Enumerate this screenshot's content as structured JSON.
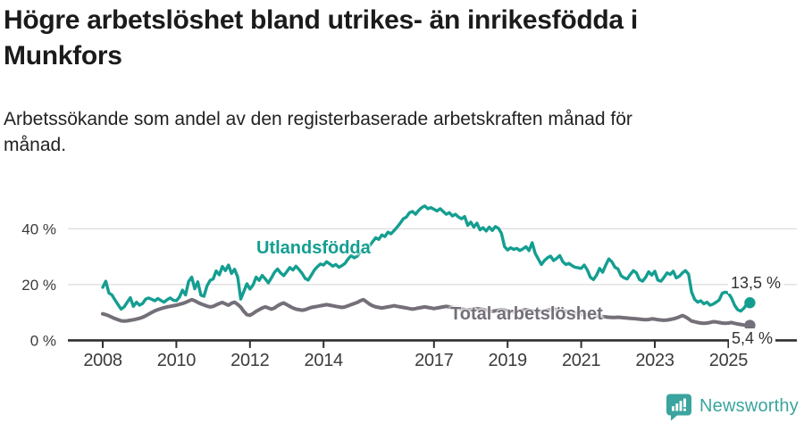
{
  "header": {
    "title_lines": [
      "Högre arbetslöshet bland utrikes- än inrikesfödda i",
      "Munkfors"
    ],
    "subtitle_lines": [
      "Arbetssökande som andel av den registerbaserade arbetskraften månad för",
      "månad."
    ]
  },
  "footer": {
    "brand": "Newsworthy",
    "logo_icon": "bar-chart-speech-bubble-icon"
  },
  "colors": {
    "foreign": "#149e91",
    "total": "#746f78",
    "grid": "#dcdcdc",
    "axis": "#2f2f2f",
    "tick_text": "#3b3b3b",
    "brand": "#3ba49e"
  },
  "chart_data": {
    "type": "line",
    "title": "Högre arbetslöshet bland utrikes- än inrikesfödda i Munkfors",
    "subtitle": "Arbetssökande som andel av den registerbaserade arbetskraften månad för månad.",
    "x_unit": "months",
    "x_start_year": 2008,
    "x_end_year": 2025.58,
    "ylim": [
      0,
      50
    ],
    "grid": "horizontal-only",
    "legend_position": "inline-labels",
    "y_ticks": [
      {
        "value": 0,
        "label": "0 %"
      },
      {
        "value": 20,
        "label": "20 %"
      },
      {
        "value": 40,
        "label": "40 %"
      }
    ],
    "x_ticks": [
      {
        "year": 2008,
        "label": "2008"
      },
      {
        "year": 2010,
        "label": "2010"
      },
      {
        "year": 2012,
        "label": "2012"
      },
      {
        "year": 2014,
        "label": "2014"
      },
      {
        "year": 2017,
        "label": "2017"
      },
      {
        "year": 2019,
        "label": "2019"
      },
      {
        "year": 2021,
        "label": "2021"
      },
      {
        "year": 2023,
        "label": "2023"
      },
      {
        "year": 2025,
        "label": "2025"
      }
    ],
    "series": [
      {
        "name": "Utlandsfödda",
        "color_key": "foreign",
        "end_label": "13,5 %",
        "end_value": 13.5,
        "values": [
          19.0,
          21.2,
          17.0,
          16.3,
          14.5,
          12.8,
          11.2,
          12.0,
          13.7,
          15.3,
          12.2,
          13.7,
          12.6,
          13.2,
          14.8,
          15.2,
          14.7,
          14.2,
          15.0,
          14.3,
          13.7,
          14.6,
          15.2,
          14.4,
          14.2,
          15.5,
          18.0,
          16.3,
          21.1,
          22.7,
          18.5,
          21.0,
          16.2,
          15.8,
          19.5,
          21.5,
          22.0,
          24.9,
          23.5,
          26.5,
          25.0,
          27.0,
          24.0,
          25.5,
          22.7,
          14.8,
          17.5,
          20.3,
          18.4,
          19.8,
          22.7,
          21.5,
          23.3,
          22.0,
          20.6,
          22.4,
          24.4,
          25.6,
          24.2,
          23.2,
          24.6,
          26.1,
          25.2,
          26.6,
          25.4,
          24.0,
          22.2,
          21.6,
          23.4,
          25.2,
          26.4,
          27.4,
          27.0,
          28.2,
          27.4,
          26.6,
          27.2,
          26.2,
          26.8,
          27.6,
          29.2,
          30.4,
          29.6,
          30.2,
          31.6,
          33.0,
          34.4,
          33.8,
          35.4,
          36.8,
          36.2,
          37.8,
          37.2,
          38.8,
          38.2,
          39.4,
          40.6,
          42.0,
          43.6,
          44.2,
          45.8,
          46.2,
          45.2,
          46.6,
          47.6,
          48.2,
          47.2,
          47.6,
          47.0,
          46.4,
          47.2,
          46.2,
          45.2,
          45.8,
          44.6,
          45.2,
          44.2,
          43.6,
          44.4,
          41.2,
          42.4,
          40.6,
          42.0,
          39.6,
          40.4,
          39.2,
          40.6,
          39.4,
          40.8,
          40.2,
          38.4,
          33.6,
          32.4,
          33.2,
          32.6,
          33.0,
          32.2,
          32.8,
          33.6,
          32.2,
          35.0,
          31.2,
          29.2,
          27.2,
          28.6,
          29.6,
          30.2,
          28.6,
          29.4,
          30.4,
          28.2,
          27.2,
          27.6,
          26.8,
          26.2,
          26.0,
          25.8,
          27.0,
          25.2,
          22.6,
          21.8,
          23.4,
          25.8,
          24.4,
          27.0,
          29.2,
          28.2,
          26.2,
          25.6,
          23.2,
          22.4,
          22.0,
          23.6,
          25.0,
          24.2,
          21.8,
          21.2,
          22.6,
          24.6,
          23.4,
          24.8,
          21.6,
          21.2,
          22.6,
          24.2,
          23.6,
          24.8,
          22.4,
          23.0,
          24.2,
          25.0,
          23.7,
          17.3,
          14.7,
          13.7,
          14.2,
          13.1,
          13.7,
          12.6,
          13.0,
          13.7,
          14.5,
          16.9,
          17.3,
          16.9,
          15.2,
          12.6,
          11.0,
          10.5,
          11.5,
          13.0,
          13.5
        ]
      },
      {
        "name": "Total arbetslöshet",
        "color_key": "total",
        "end_label": "5,4 %",
        "end_value": 5.4,
        "values": [
          9.5,
          9.2,
          8.8,
          8.3,
          7.8,
          7.4,
          7.0,
          6.9,
          7.0,
          7.2,
          7.4,
          7.6,
          7.9,
          8.3,
          8.8,
          9.4,
          10.0,
          10.6,
          11.0,
          11.4,
          11.7,
          12.0,
          12.2,
          12.4,
          12.6,
          12.9,
          13.2,
          13.6,
          14.1,
          14.6,
          14.2,
          13.6,
          13.1,
          12.7,
          12.3,
          12.0,
          12.2,
          12.7,
          13.2,
          13.6,
          13.1,
          12.6,
          13.3,
          13.7,
          12.9,
          11.9,
          10.4,
          9.2,
          9.0,
          9.6,
          10.4,
          11.0,
          11.6,
          12.0,
          11.6,
          11.2,
          11.6,
          12.4,
          13.0,
          13.4,
          12.8,
          12.2,
          11.6,
          11.2,
          11.0,
          10.8,
          11.0,
          11.4,
          11.8,
          12.0,
          12.2,
          12.4,
          12.6,
          12.8,
          12.6,
          12.4,
          12.2,
          12.0,
          11.8,
          12.0,
          12.4,
          12.8,
          13.2,
          13.6,
          14.2,
          14.6,
          13.8,
          13.0,
          12.4,
          12.0,
          11.8,
          11.6,
          11.8,
          12.0,
          12.2,
          12.4,
          12.2,
          12.0,
          11.8,
          11.6,
          11.4,
          11.2,
          11.4,
          11.6,
          11.8,
          12.0,
          11.8,
          11.6,
          11.4,
          11.6,
          11.8,
          12.0,
          12.2,
          12.0,
          11.8,
          11.6,
          11.4,
          11.2,
          11.0,
          10.8,
          11.0,
          11.2,
          11.4,
          11.2,
          11.0,
          10.8,
          10.6,
          10.4,
          10.6,
          10.8,
          11.0,
          10.8,
          10.6,
          10.4,
          10.2,
          10.4,
          10.6,
          10.8,
          11.0,
          10.8,
          10.6,
          10.4,
          10.2,
          10.4,
          10.6,
          10.8,
          11.0,
          11.2,
          11.0,
          10.8,
          10.6,
          10.4,
          10.2,
          10.0,
          9.8,
          9.6,
          9.4,
          9.2,
          9.0,
          8.9,
          8.8,
          8.7,
          8.6,
          8.5,
          8.4,
          8.3,
          8.2,
          8.2,
          8.3,
          8.2,
          8.1,
          8.0,
          7.9,
          7.8,
          7.7,
          7.6,
          7.5,
          7.4,
          7.5,
          7.7,
          7.6,
          7.4,
          7.3,
          7.2,
          7.3,
          7.5,
          7.7,
          8.0,
          8.4,
          8.9,
          8.4,
          7.7,
          6.9,
          6.7,
          6.4,
          6.2,
          6.1,
          6.2,
          6.4,
          6.7,
          6.6,
          6.4,
          6.2,
          6.1,
          6.2,
          6.4,
          6.1,
          5.9,
          5.7,
          5.5,
          5.3,
          5.4
        ]
      }
    ]
  }
}
